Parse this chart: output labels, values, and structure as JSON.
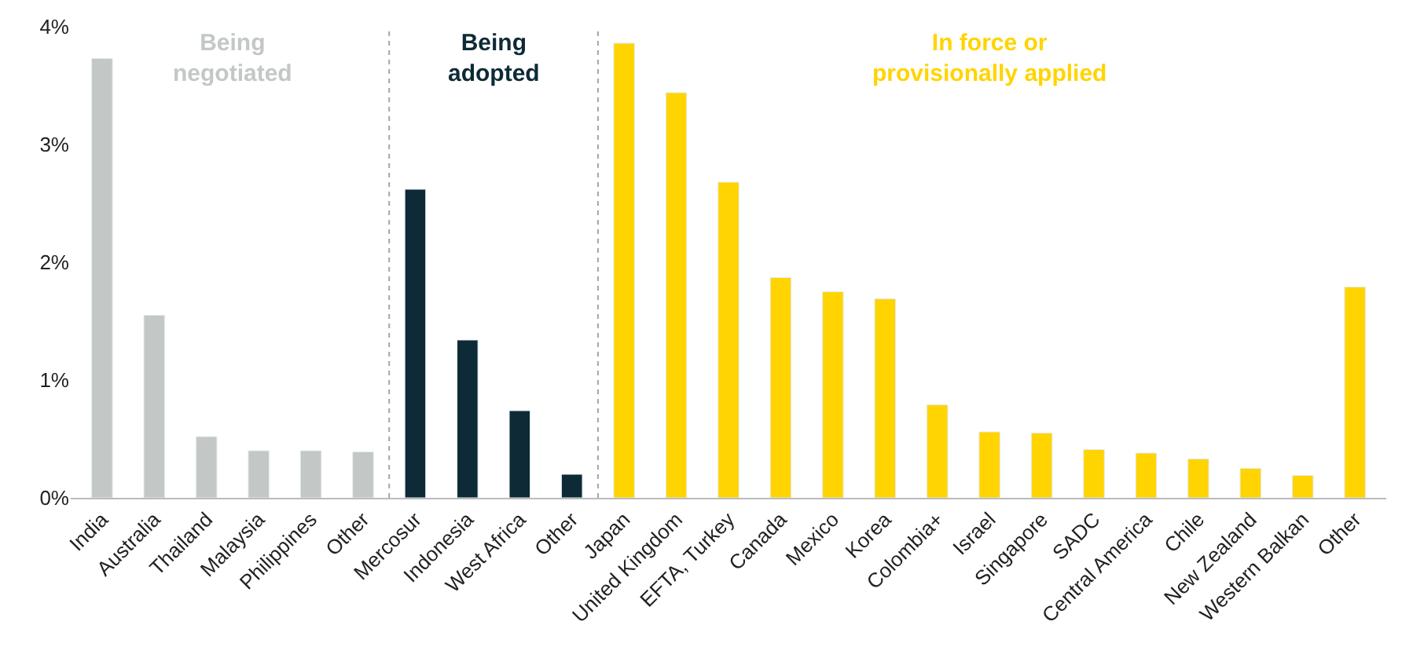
{
  "chart_data": {
    "type": "bar",
    "categories": [
      "India",
      "Australia",
      "Thailand",
      "Malaysia",
      "Philippines",
      "Other",
      "Mercosur",
      "Indonesia",
      "West Africa",
      "Other",
      "Japan",
      "United Kingdom",
      "EFTA, Turkey",
      "Canada",
      "Mexico",
      "Korea",
      "Colombia+",
      "Israel",
      "Singapore",
      "SADC",
      "Central America",
      "Chile",
      "New Zealand",
      "Western Balkan",
      "Other"
    ],
    "series": [
      {
        "name": "Being\nnegotiated",
        "color": "#c3c8c6",
        "values": [
          3.73,
          1.55,
          0.52,
          0.4,
          0.4,
          0.39,
          null,
          null,
          null,
          null,
          null,
          null,
          null,
          null,
          null,
          null,
          null,
          null,
          null,
          null,
          null,
          null,
          null,
          null,
          null
        ]
      },
      {
        "name": "Being\nadopted",
        "color": "#0d2a36",
        "values": [
          null,
          null,
          null,
          null,
          null,
          null,
          2.62,
          1.34,
          0.74,
          0.2,
          null,
          null,
          null,
          null,
          null,
          null,
          null,
          null,
          null,
          null,
          null,
          null,
          null,
          null,
          null
        ]
      },
      {
        "name": "In force or\nprovisionally applied",
        "color": "#ffd400",
        "values": [
          null,
          null,
          null,
          null,
          null,
          null,
          null,
          null,
          null,
          null,
          3.86,
          3.44,
          2.68,
          1.87,
          1.75,
          1.69,
          0.79,
          0.56,
          0.55,
          0.41,
          0.38,
          0.33,
          0.25,
          0.19,
          1.79
        ]
      }
    ],
    "ylim": [
      0,
      4
    ],
    "yticks": [
      {
        "value": 0,
        "label": "0%"
      },
      {
        "value": 1,
        "label": "1%"
      },
      {
        "value": 2,
        "label": "2%"
      },
      {
        "value": 3,
        "label": "3%"
      },
      {
        "value": 4,
        "label": "4%"
      }
    ],
    "legend": false
  }
}
